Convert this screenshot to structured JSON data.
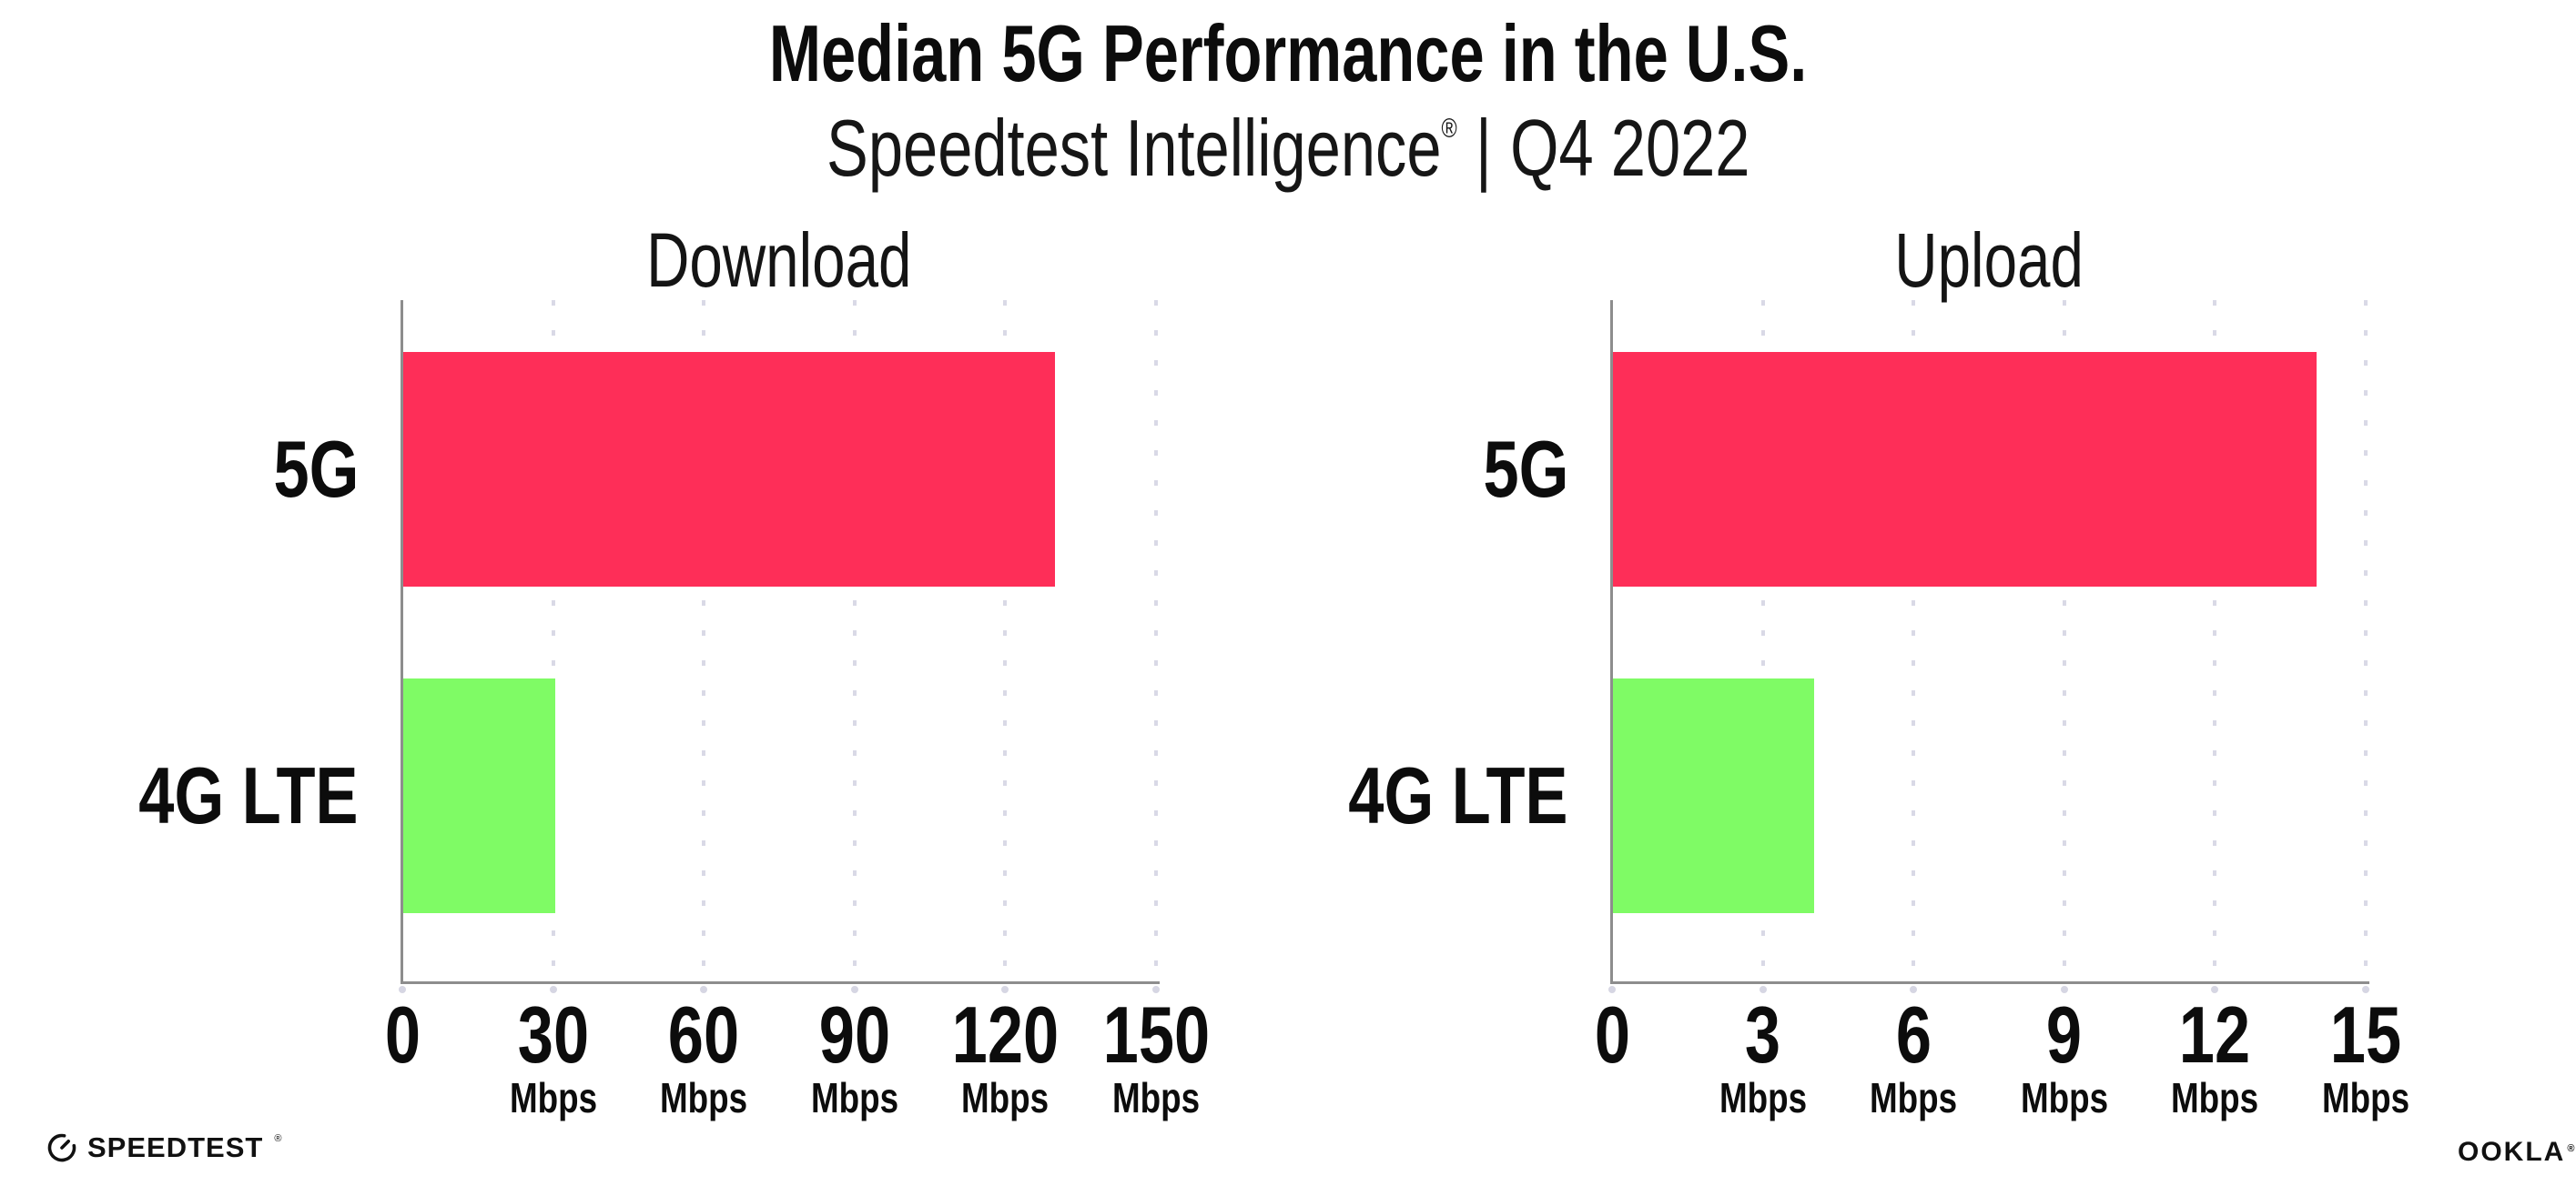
{
  "header": {
    "title": "Median 5G Performance in the U.S.",
    "subtitle": {
      "brand": "Speedtest Intelligence",
      "registered_mark": "®",
      "separator": "|",
      "period": "Q4 2022"
    }
  },
  "chart_data": [
    {
      "type": "bar",
      "orientation": "horizontal",
      "title": "Download",
      "categories": [
        "5G",
        "4G LTE"
      ],
      "values": [
        129.8,
        30.3
      ],
      "unit": "Mbps",
      "xlim": [
        0,
        150
      ],
      "xticks": [
        0,
        30,
        60,
        90,
        120,
        150
      ],
      "tick_unit_label": "Mbps",
      "bar_colors": [
        "#fe2e58",
        "#7ffb65"
      ],
      "grid": "dotted-vertical",
      "legend": "none"
    },
    {
      "type": "bar",
      "orientation": "horizontal",
      "title": "Upload",
      "categories": [
        "5G",
        "4G LTE"
      ],
      "values": [
        14.0,
        4.0
      ],
      "unit": "Mbps",
      "xlim": [
        0,
        15
      ],
      "xticks": [
        0,
        3,
        6,
        9,
        12,
        15
      ],
      "tick_unit_label": "Mbps",
      "bar_colors": [
        "#fe2e58",
        "#7ffb65"
      ],
      "grid": "dotted-vertical",
      "legend": "none"
    }
  ],
  "footer": {
    "speedtest_logo_text": "SPEEDTEST",
    "speedtest_registered_mark": "®",
    "ookla_logo_text": "OOKLA",
    "ookla_registered_mark": "®"
  },
  "colors": {
    "bar_5g": "#fe2e58",
    "bar_4g_lte": "#7ffb65",
    "axis": "#8d8d8d",
    "gridline": "#d9d9e6",
    "text": "#0c0c0c",
    "background": "#ffffff"
  }
}
